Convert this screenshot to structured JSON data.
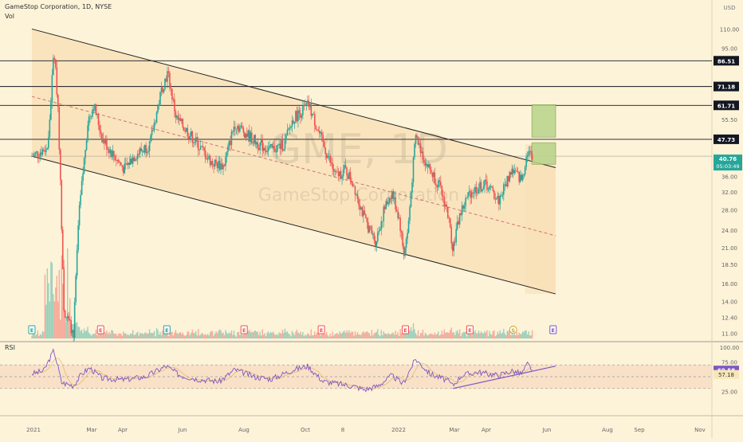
{
  "header": {
    "symbol_label": "GameStop Corporation, 1D, NYSE",
    "volume_label": "Vol",
    "currency": "USD",
    "watermark_ticker": "GME, 1D",
    "watermark_name": "GameStop Corporation",
    "rsi_label": "RSI"
  },
  "chart_data": {
    "type": "candlestick",
    "title": "GameStop Corporation, 1D, NYSE",
    "x_tick_labels": [
      "2021",
      "Mar",
      "Apr",
      "Jun",
      "Aug",
      "Oct",
      "8",
      "2022",
      "Mar",
      "Apr",
      "Jun",
      "Aug",
      "Sep",
      "Nov"
    ],
    "y_tick_labels": [
      "110.00",
      "95.00",
      "55.50",
      "36.00",
      "32.00",
      "28.00",
      "24.00",
      "21.00",
      "18.50",
      "16.00",
      "14.00",
      "12.40",
      "11.00"
    ],
    "price_scale": "log",
    "price_range": [
      10.5,
      120
    ],
    "horizontal_levels": [
      86.51,
      71.18,
      61.71,
      47.73
    ],
    "current_price": {
      "value": "40.76",
      "countdown": "05:03:49"
    },
    "channel": {
      "upper": [
        [
          "2021-01-01",
          110
        ],
        [
          "2022-09-10",
          38.5
        ]
      ],
      "middle": [
        [
          "2021-01-01",
          66
        ],
        [
          "2022-09-10",
          23
        ]
      ],
      "lower": [
        [
          "2021-01-01",
          42
        ],
        [
          "2022-09-10",
          14.8
        ]
      ]
    },
    "target_zones": [
      {
        "low": 48.5,
        "high": 62,
        "color": "#b8d48a"
      },
      {
        "low": 39.5,
        "high": 46.5,
        "color": "#b8d48a"
      }
    ],
    "earnings_markers": [
      "E",
      "E",
      "E",
      "E",
      "E",
      "E",
      "E",
      "S",
      "E"
    ],
    "price_path_waypoints": [
      [
        "2021-01-01",
        42
      ],
      [
        "2021-01-20",
        45
      ],
      [
        "2021-01-27",
        95
      ],
      [
        "2021-02-01",
        60
      ],
      [
        "2021-02-08",
        13
      ],
      [
        "2021-02-19",
        11
      ],
      [
        "2021-02-25",
        26
      ],
      [
        "2021-03-08",
        55
      ],
      [
        "2021-03-15",
        62
      ],
      [
        "2021-03-25",
        48
      ],
      [
        "2021-04-08",
        42
      ],
      [
        "2021-04-20",
        38
      ],
      [
        "2021-05-01",
        42
      ],
      [
        "2021-05-20",
        46
      ],
      [
        "2021-06-03",
        70
      ],
      [
        "2021-06-10",
        79
      ],
      [
        "2021-06-20",
        56
      ],
      [
        "2021-07-10",
        48
      ],
      [
        "2021-08-01",
        40
      ],
      [
        "2021-08-15",
        39
      ],
      [
        "2021-08-28",
        54
      ],
      [
        "2021-09-10",
        50
      ],
      [
        "2021-09-25",
        46
      ],
      [
        "2021-10-10",
        44
      ],
      [
        "2021-10-25",
        46
      ],
      [
        "2021-11-05",
        56
      ],
      [
        "2021-11-23",
        62
      ],
      [
        "2021-12-10",
        46
      ],
      [
        "2021-12-25",
        36
      ],
      [
        "2022-01-05",
        38
      ],
      [
        "2022-01-15",
        34
      ],
      [
        "2022-01-28",
        26
      ],
      [
        "2022-02-10",
        22
      ],
      [
        "2022-02-20",
        28
      ],
      [
        "2022-03-01",
        32
      ],
      [
        "2022-03-10",
        26
      ],
      [
        "2022-03-15",
        20
      ],
      [
        "2022-03-20",
        24
      ],
      [
        "2022-03-29",
        49
      ],
      [
        "2022-04-10",
        40
      ],
      [
        "2022-04-25",
        34
      ],
      [
        "2022-05-05",
        28
      ],
      [
        "2022-05-12",
        21
      ],
      [
        "2022-05-20",
        27
      ],
      [
        "2022-06-01",
        32
      ],
      [
        "2022-06-20",
        34
      ],
      [
        "2022-07-05",
        30
      ],
      [
        "2022-07-20",
        38
      ],
      [
        "2022-08-01",
        35
      ],
      [
        "2022-08-08",
        44
      ],
      [
        "2022-08-14",
        40.76
      ]
    ],
    "volume_bars": "candle-matched",
    "rsi": {
      "y_tick_labels": [
        "100.00",
        "75.00",
        "25.00"
      ],
      "current": "60.58",
      "ma_value": "57.18",
      "overbought": 70,
      "oversold": 30,
      "trendline": [
        [
          "2022-05-12",
          30
        ],
        [
          "2022-09-10",
          68
        ]
      ],
      "waypoints": [
        [
          "2021-01-01",
          55
        ],
        [
          "2021-01-15",
          60
        ],
        [
          "2021-01-27",
          95
        ],
        [
          "2021-02-05",
          40
        ],
        [
          "2021-02-19",
          35
        ],
        [
          "2021-03-01",
          55
        ],
        [
          "2021-03-10",
          65
        ],
        [
          "2021-03-25",
          47
        ],
        [
          "2021-04-20",
          45
        ],
        [
          "2021-05-15",
          50
        ],
        [
          "2021-06-08",
          68
        ],
        [
          "2021-06-25",
          52
        ],
        [
          "2021-07-15",
          46
        ],
        [
          "2021-08-10",
          42
        ],
        [
          "2021-08-28",
          62
        ],
        [
          "2021-09-20",
          50
        ],
        [
          "2021-10-10",
          46
        ],
        [
          "2021-11-05",
          62
        ],
        [
          "2021-11-22",
          68
        ],
        [
          "2021-12-10",
          42
        ],
        [
          "2021-12-28",
          38
        ],
        [
          "2022-01-15",
          34
        ],
        [
          "2022-01-28",
          28
        ],
        [
          "2022-02-12",
          34
        ],
        [
          "2022-03-01",
          52
        ],
        [
          "2022-03-14",
          38
        ],
        [
          "2022-03-29",
          80
        ],
        [
          "2022-04-15",
          55
        ],
        [
          "2022-05-05",
          44
        ],
        [
          "2022-05-12",
          35
        ],
        [
          "2022-05-22",
          52
        ],
        [
          "2022-06-10",
          58
        ],
        [
          "2022-07-05",
          52
        ],
        [
          "2022-07-20",
          60
        ],
        [
          "2022-08-01",
          55
        ],
        [
          "2022-08-08",
          72
        ],
        [
          "2022-08-14",
          60.58
        ]
      ]
    }
  },
  "colors": {
    "background": "#fdf3d8",
    "channel_fill": "#f8dfb6",
    "rsi_band_fill": "#f5d9c0",
    "up": "#26a69a",
    "down": "#ef5350",
    "rsi_line": "#7e57c2",
    "level_line": "#131722",
    "price_badge": "#26a69a"
  }
}
